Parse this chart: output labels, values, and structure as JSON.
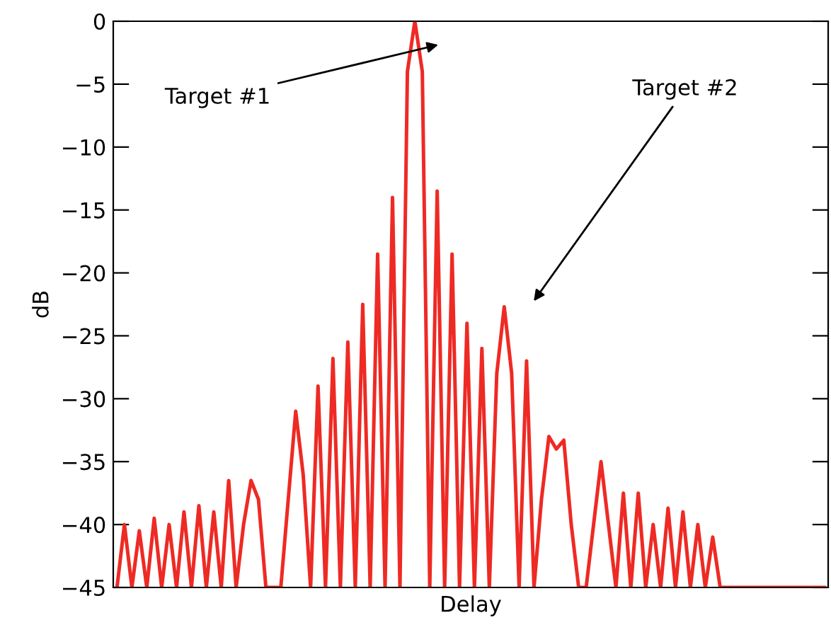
{
  "chart_data": {
    "type": "line",
    "xlabel": "Delay",
    "ylabel": "dB",
    "ylim": [
      -45,
      0
    ],
    "yticks": [
      {
        "value": 0,
        "label": "0"
      },
      {
        "value": -5,
        "label": "−5"
      },
      {
        "value": -10,
        "label": "−10"
      },
      {
        "value": -15,
        "label": "−15"
      },
      {
        "value": -20,
        "label": "−20"
      },
      {
        "value": -25,
        "label": "−25"
      },
      {
        "value": -30,
        "label": "−30"
      },
      {
        "value": -35,
        "label": "−35"
      },
      {
        "value": -40,
        "label": "−40"
      },
      {
        "value": -45,
        "label": "−45"
      }
    ],
    "tick_labels": "y",
    "grid": false,
    "marker": "none",
    "line_style": "solid",
    "categories": [
      null,
      null,
      null,
      null,
      null,
      null,
      null,
      null,
      null,
      null,
      null,
      null,
      null,
      null,
      null,
      null,
      null,
      null,
      null,
      null,
      null,
      null,
      null,
      null,
      null,
      null,
      null,
      null,
      null,
      null,
      null,
      null,
      null,
      null,
      null,
      null,
      null,
      null,
      null,
      null,
      null,
      null,
      null,
      null,
      null,
      null,
      null,
      null,
      null,
      null,
      null,
      null,
      null,
      null,
      null,
      null,
      null,
      null,
      null,
      null,
      null,
      null,
      null,
      null,
      null,
      null,
      null,
      null,
      null,
      null,
      null,
      null,
      null,
      null,
      null,
      null,
      null,
      null,
      null,
      null,
      null,
      null,
      null,
      null,
      null,
      null,
      null,
      null,
      null,
      null,
      null,
      null,
      null,
      null,
      null,
      null
    ],
    "series": [
      {
        "color": "#ee2a24",
        "values": [
          -45,
          -40,
          -45,
          -40.5,
          -45,
          -39.5,
          -45,
          -40,
          -45,
          -39,
          -45,
          -38.5,
          -45,
          -39,
          -45,
          -36.5,
          -45,
          -40,
          -36.5,
          -38,
          -45,
          -45,
          -45,
          -38,
          -31,
          -36,
          -45,
          -29,
          -45,
          -26.8,
          -45,
          -25.5,
          -45,
          -22.5,
          -45,
          -18.5,
          -45,
          -14,
          -45,
          -4,
          0,
          -4,
          -45,
          -13.5,
          -45,
          -18.5,
          -45,
          -24,
          -45,
          -26,
          -45,
          -28,
          -22.7,
          -28,
          -45,
          -27,
          -45,
          -38,
          -33,
          -34,
          -33.3,
          -40,
          -45,
          -45,
          -40,
          -35,
          -40,
          -45,
          -37.5,
          -45,
          -37.5,
          -45,
          -40,
          -45,
          -38.7,
          -45,
          -39,
          -45,
          -40,
          -45,
          -41,
          -45,
          -45,
          -45,
          -45,
          -45,
          -45,
          -45,
          -45,
          -45,
          -45,
          -45,
          -45,
          -45,
          -45,
          -45
        ]
      }
    ],
    "annotations": [
      "Target #1",
      "Target #2"
    ]
  }
}
